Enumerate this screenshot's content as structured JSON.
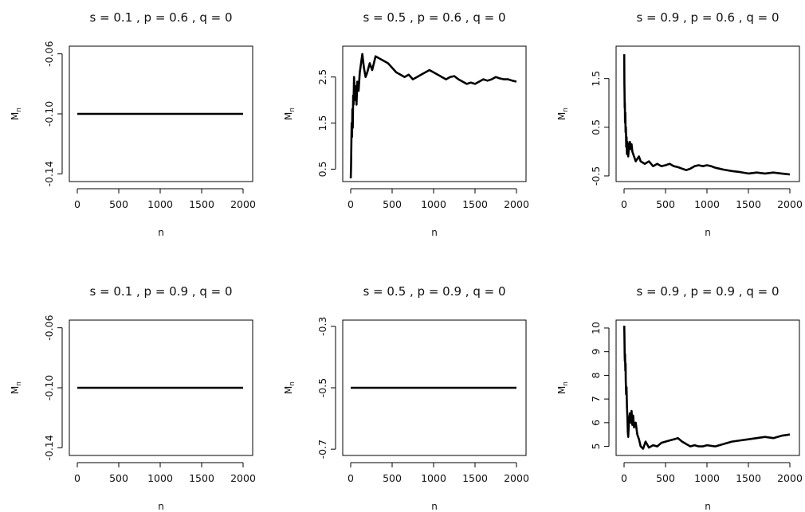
{
  "chart_data": [
    {
      "type": "line",
      "title": "s = 0.1 , p = 0.6 , q = 0",
      "xlabel": "n",
      "ylabel": "M",
      "ylabel_sub": "n",
      "xlim": [
        0,
        2000
      ],
      "ylim": [
        -0.143,
        -0.057
      ],
      "xticks": [
        0,
        500,
        1000,
        1500,
        2000
      ],
      "xtick_labels": [
        "0",
        "500",
        "1000",
        "1500",
        "2000"
      ],
      "yticks": [
        -0.14,
        -0.1,
        -0.06
      ],
      "ytick_labels": [
        "-0.14",
        "-0.10",
        "-0.06"
      ],
      "series": [
        {
          "x": [
            0,
            2000
          ],
          "y": [
            -0.1,
            -0.1
          ]
        }
      ]
    },
    {
      "type": "line",
      "title": "s = 0.5 , p = 0.6 , q = 0",
      "xlabel": "n",
      "ylabel": "M",
      "ylabel_sub": "n",
      "xlim": [
        0,
        2000
      ],
      "ylim": [
        0.3,
        3.1
      ],
      "xticks": [
        0,
        500,
        1000,
        1500,
        2000
      ],
      "xtick_labels": [
        "0",
        "500",
        "1000",
        "1500",
        "2000"
      ],
      "yticks": [
        0.5,
        1.5,
        2.5
      ],
      "ytick_labels": [
        "0.5",
        "1.5",
        "2.5"
      ],
      "series": [
        {
          "x": [
            1,
            5,
            8,
            12,
            16,
            20,
            25,
            30,
            35,
            40,
            50,
            60,
            70,
            80,
            95,
            110,
            125,
            140,
            160,
            180,
            200,
            230,
            260,
            300,
            350,
            400,
            450,
            500,
            550,
            600,
            650,
            700,
            750,
            800,
            850,
            900,
            950,
            1000,
            1050,
            1100,
            1150,
            1200,
            1250,
            1300,
            1350,
            1400,
            1450,
            1500,
            1550,
            1600,
            1650,
            1700,
            1750,
            1800,
            1850,
            1900,
            1950,
            2000
          ],
          "y": [
            0.3,
            0.6,
            1.0,
            1.5,
            1.2,
            1.8,
            1.4,
            2.1,
            1.9,
            2.5,
            2.0,
            2.3,
            1.9,
            2.4,
            2.2,
            2.6,
            2.8,
            3.0,
            2.7,
            2.5,
            2.6,
            2.8,
            2.65,
            2.95,
            2.9,
            2.85,
            2.8,
            2.7,
            2.6,
            2.55,
            2.5,
            2.55,
            2.45,
            2.5,
            2.55,
            2.6,
            2.65,
            2.6,
            2.55,
            2.5,
            2.45,
            2.5,
            2.52,
            2.45,
            2.4,
            2.35,
            2.38,
            2.35,
            2.4,
            2.45,
            2.42,
            2.45,
            2.5,
            2.47,
            2.45,
            2.45,
            2.42,
            2.4
          ]
        }
      ]
    },
    {
      "type": "line",
      "title": "s = 0.9 , p = 0.6 , q = 0",
      "xlabel": "n",
      "ylabel": "M",
      "ylabel_sub": "n",
      "xlim": [
        0,
        2000
      ],
      "ylim": [
        -0.55,
        2.1
      ],
      "xticks": [
        0,
        500,
        1000,
        1500,
        2000
      ],
      "xtick_labels": [
        "0",
        "500",
        "1000",
        "1500",
        "2000"
      ],
      "yticks": [
        -0.5,
        0.5,
        1.5
      ],
      "ytick_labels": [
        "-0.5",
        "0.5",
        "1.5"
      ],
      "series": [
        {
          "x": [
            2,
            4,
            6,
            8,
            10,
            12,
            15,
            18,
            22,
            26,
            30,
            35,
            40,
            45,
            50,
            60,
            70,
            80,
            90,
            100,
            120,
            140,
            160,
            180,
            200,
            250,
            300,
            350,
            400,
            450,
            500,
            550,
            600,
            650,
            700,
            750,
            800,
            850,
            900,
            950,
            1000,
            1050,
            1100,
            1150,
            1200,
            1300,
            1400,
            1500,
            1600,
            1700,
            1800,
            1900,
            2000
          ],
          "y": [
            2.0,
            1.4,
            1.2,
            0.9,
            1.0,
            0.6,
            0.8,
            0.4,
            0.5,
            0.1,
            0.3,
            -0.05,
            0.2,
            0.0,
            -0.1,
            0.1,
            0.2,
            0.05,
            0.15,
            0.0,
            -0.1,
            -0.2,
            -0.15,
            -0.1,
            -0.2,
            -0.25,
            -0.2,
            -0.3,
            -0.25,
            -0.3,
            -0.28,
            -0.25,
            -0.3,
            -0.32,
            -0.35,
            -0.38,
            -0.35,
            -0.3,
            -0.28,
            -0.3,
            -0.28,
            -0.3,
            -0.33,
            -0.35,
            -0.37,
            -0.4,
            -0.42,
            -0.45,
            -0.43,
            -0.45,
            -0.43,
            -0.45,
            -0.47
          ]
        }
      ]
    },
    {
      "type": "line",
      "title": "s = 0.1 , p = 0.9 , q = 0",
      "xlabel": "n",
      "ylabel": "M",
      "ylabel_sub": "n",
      "xlim": [
        0,
        2000
      ],
      "ylim": [
        -0.143,
        -0.057
      ],
      "xticks": [
        0,
        500,
        1000,
        1500,
        2000
      ],
      "xtick_labels": [
        "0",
        "500",
        "1000",
        "1500",
        "2000"
      ],
      "yticks": [
        -0.14,
        -0.1,
        -0.06
      ],
      "ytick_labels": [
        "-0.14",
        "-0.10",
        "-0.06"
      ],
      "series": [
        {
          "x": [
            0,
            2000
          ],
          "y": [
            -0.1,
            -0.1
          ]
        }
      ]
    },
    {
      "type": "line",
      "title": "s = 0.5 , p = 0.9 , q = 0",
      "xlabel": "n",
      "ylabel": "M",
      "ylabel_sub": "n",
      "xlim": [
        0,
        2000
      ],
      "ylim": [
        -0.71,
        -0.29
      ],
      "xticks": [
        0,
        500,
        1000,
        1500,
        2000
      ],
      "xtick_labels": [
        "0",
        "500",
        "1000",
        "1500",
        "2000"
      ],
      "yticks": [
        -0.7,
        -0.5,
        -0.3
      ],
      "ytick_labels": [
        "-0.7",
        "-0.5",
        "-0.3"
      ],
      "series": [
        {
          "x": [
            0,
            2000
          ],
          "y": [
            -0.5,
            -0.5
          ]
        }
      ]
    },
    {
      "type": "line",
      "title": "s = 0.9 , p = 0.9 , q = 0",
      "xlabel": "n",
      "ylabel": "M",
      "ylabel_sub": "n",
      "xlim": [
        0,
        2000
      ],
      "ylim": [
        4.75,
        10.2
      ],
      "xticks": [
        0,
        500,
        1000,
        1500,
        2000
      ],
      "xtick_labels": [
        "0",
        "500",
        "1000",
        "1500",
        "2000"
      ],
      "yticks": [
        5,
        6,
        7,
        8,
        9,
        10
      ],
      "ytick_labels": [
        "5",
        "6",
        "7",
        "8",
        "9",
        "10"
      ],
      "series": [
        {
          "x": [
            2,
            4,
            6,
            8,
            10,
            12,
            15,
            18,
            20,
            25,
            30,
            35,
            40,
            45,
            50,
            60,
            70,
            80,
            90,
            100,
            110,
            120,
            140,
            160,
            180,
            200,
            230,
            260,
            300,
            350,
            400,
            450,
            500,
            550,
            600,
            650,
            700,
            750,
            800,
            850,
            900,
            950,
            1000,
            1100,
            1200,
            1300,
            1400,
            1500,
            1600,
            1700,
            1800,
            1900,
            2000
          ],
          "y": [
            10.1,
            9.8,
            9.3,
            8.8,
            8.6,
            8.9,
            8.2,
            8.5,
            7.8,
            7.2,
            7.5,
            6.7,
            6.2,
            5.6,
            5.4,
            6.1,
            6.4,
            6.0,
            6.5,
            5.9,
            6.3,
            5.8,
            6.0,
            5.5,
            5.3,
            5.0,
            4.9,
            5.2,
            4.95,
            5.05,
            5.0,
            5.15,
            5.2,
            5.25,
            5.3,
            5.35,
            5.2,
            5.1,
            5.0,
            5.05,
            5.0,
            5.0,
            5.05,
            5.0,
            5.1,
            5.2,
            5.25,
            5.3,
            5.35,
            5.4,
            5.35,
            5.45,
            5.5
          ]
        }
      ]
    }
  ]
}
